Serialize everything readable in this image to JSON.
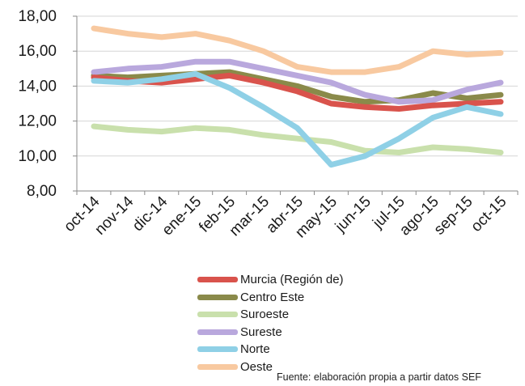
{
  "chart_data": {
    "type": "line",
    "title": "",
    "xlabel": "",
    "ylabel": "",
    "ylim": [
      8,
      18
    ],
    "yticks": [
      "8,00",
      "10,00",
      "12,00",
      "14,00",
      "16,00",
      "18,00"
    ],
    "categories": [
      "oct-14",
      "nov-14",
      "dic-14",
      "ene-15",
      "feb-15",
      "mar-15",
      "abr-15",
      "may-15",
      "jun-15",
      "jul-15",
      "ago-15",
      "sep-15",
      "oct-15"
    ],
    "grid": "horizontal",
    "legend_position": "bottom",
    "series": [
      {
        "name": "Murcia (Región de)",
        "color": "#d9534c",
        "values": [
          14.5,
          14.3,
          14.2,
          14.4,
          14.6,
          14.2,
          13.7,
          13.0,
          12.8,
          12.7,
          12.9,
          13.0,
          13.1
        ]
      },
      {
        "name": "Centro Este",
        "color": "#8a8a4a",
        "values": [
          14.6,
          14.5,
          14.6,
          14.7,
          14.8,
          14.4,
          14.0,
          13.4,
          13.1,
          13.2,
          13.6,
          13.3,
          13.5
        ]
      },
      {
        "name": "Suroeste",
        "color": "#c9e0ac",
        "values": [
          11.7,
          11.5,
          11.4,
          11.6,
          11.5,
          11.2,
          11.0,
          10.8,
          10.3,
          10.2,
          10.5,
          10.4,
          10.2
        ]
      },
      {
        "name": "Sureste",
        "color": "#b9a8dd",
        "values": [
          14.8,
          15.0,
          15.1,
          15.4,
          15.4,
          15.0,
          14.6,
          14.2,
          13.5,
          13.1,
          13.2,
          13.8,
          14.2
        ]
      },
      {
        "name": "Norte",
        "color": "#8fd0e6",
        "values": [
          14.3,
          14.2,
          14.4,
          14.7,
          13.9,
          12.8,
          11.6,
          9.5,
          10.0,
          11.0,
          12.2,
          12.8,
          12.4
        ]
      },
      {
        "name": "Oeste",
        "color": "#f8c9a0",
        "values": [
          17.3,
          17.0,
          16.8,
          17.0,
          16.6,
          16.0,
          15.1,
          14.8,
          14.8,
          15.1,
          16.0,
          15.8,
          15.9
        ]
      }
    ]
  },
  "source_note": "Fuente: elaboración propia a partir datos SEF"
}
